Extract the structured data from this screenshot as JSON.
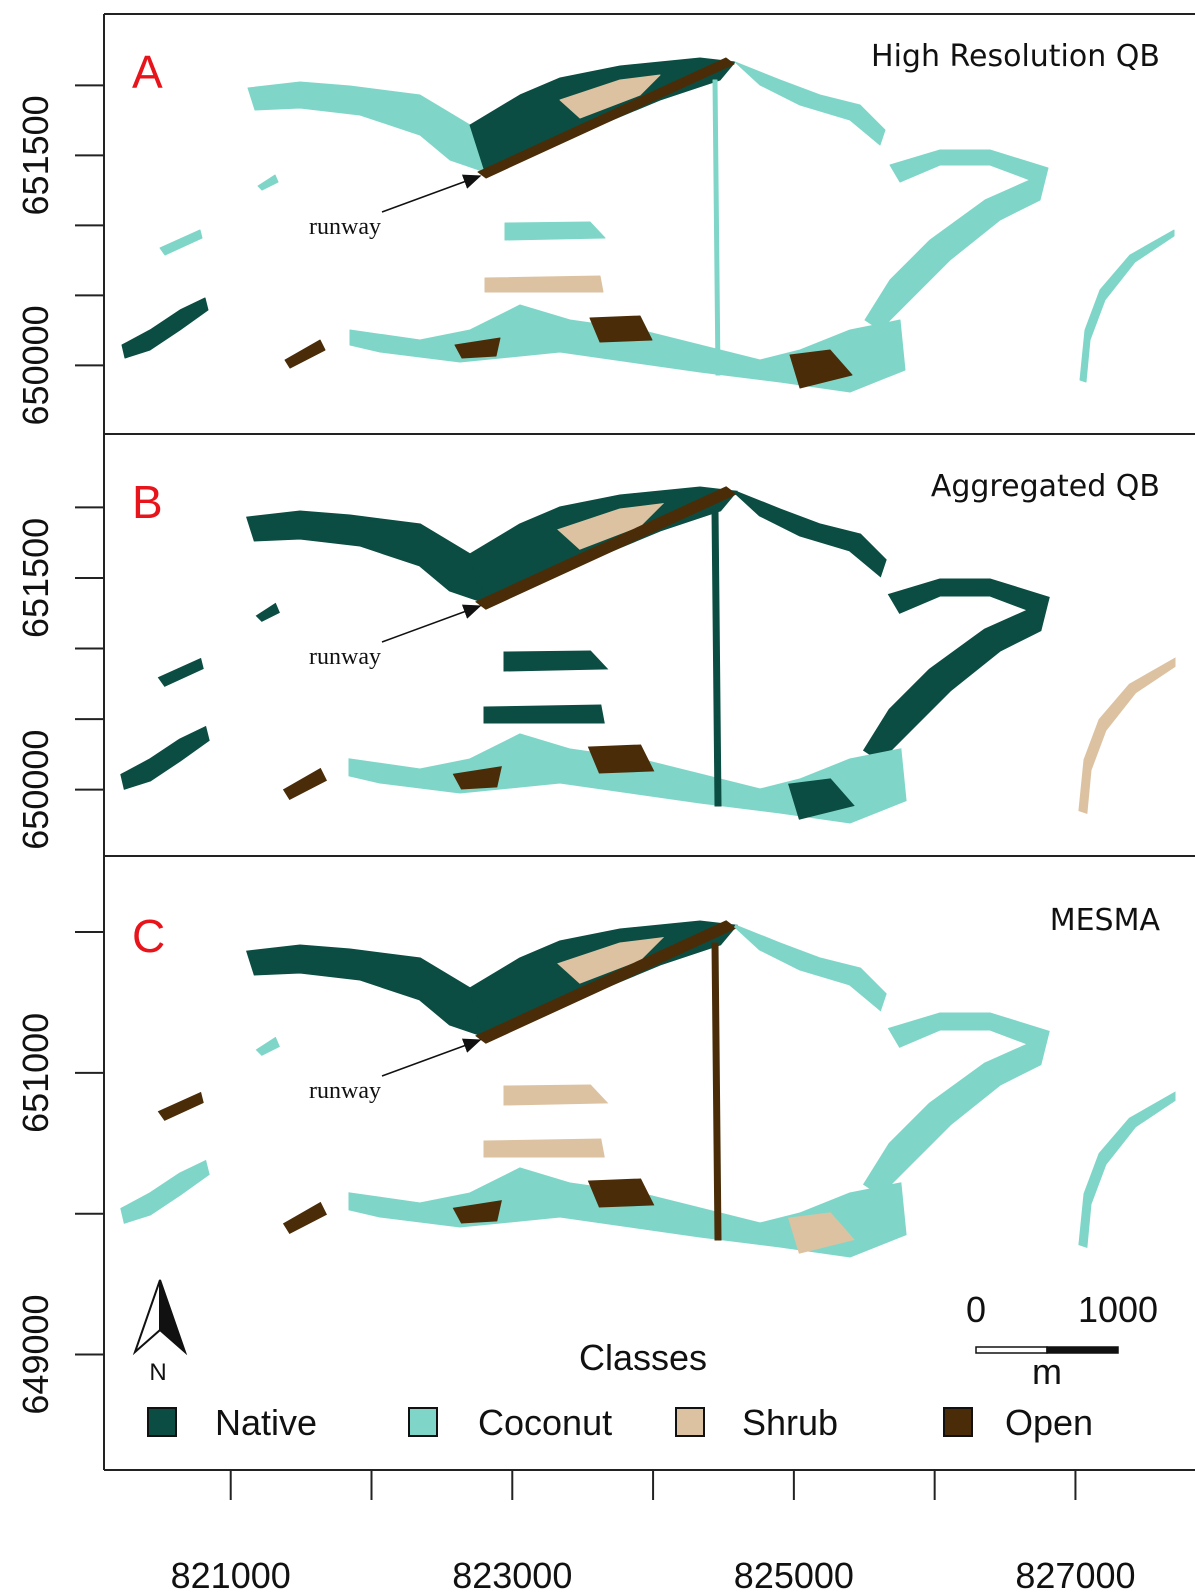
{
  "xlim": [
    820100,
    827700
  ],
  "xticks": [
    821000,
    {
      "value": 822000,
      "label": null
    },
    823000,
    {
      "value": 824000,
      "label": null
    },
    825000,
    {
      "value": 826000,
      "label": null
    },
    827000
  ],
  "panels": [
    {
      "label": "A",
      "title": "High Resolution QB",
      "annotation": "runway",
      "ylim": [
        649510,
        652510
      ],
      "yticks": [
        {
          "value": 652000,
          "label": null
        },
        651500,
        {
          "value": 651000,
          "label": null
        },
        {
          "value": 650500,
          "label": null
        },
        650000
      ]
    },
    {
      "label": "B",
      "title": "Aggregated QB",
      "annotation": "runway",
      "ylim": [
        649530,
        652520
      ],
      "yticks": [
        {
          "value": 652000,
          "label": null
        },
        651500,
        {
          "value": 651000,
          "label": null
        },
        {
          "value": 650500,
          "label": null
        },
        650000
      ]
    },
    {
      "label": "C",
      "title": "MESMA",
      "annotation": "runway",
      "ylim": [
        648180,
        652540
      ],
      "yticks": [
        {
          "value": 652000,
          "label": null
        },
        651000,
        {
          "value": 650000,
          "label": null
        },
        649000
      ]
    }
  ],
  "legend": {
    "title": "Classes",
    "items": [
      {
        "name": "Native",
        "color": "#0b4d42"
      },
      {
        "name": "Coconut",
        "color": "#7fd6c8"
      },
      {
        "name": "Shrub",
        "color": "#dcc2a1"
      },
      {
        "name": "Open",
        "color": "#4a2d08"
      }
    ]
  },
  "north_label": "N",
  "scale_bar": {
    "labels": [
      0,
      1000
    ],
    "unit": "m"
  }
}
